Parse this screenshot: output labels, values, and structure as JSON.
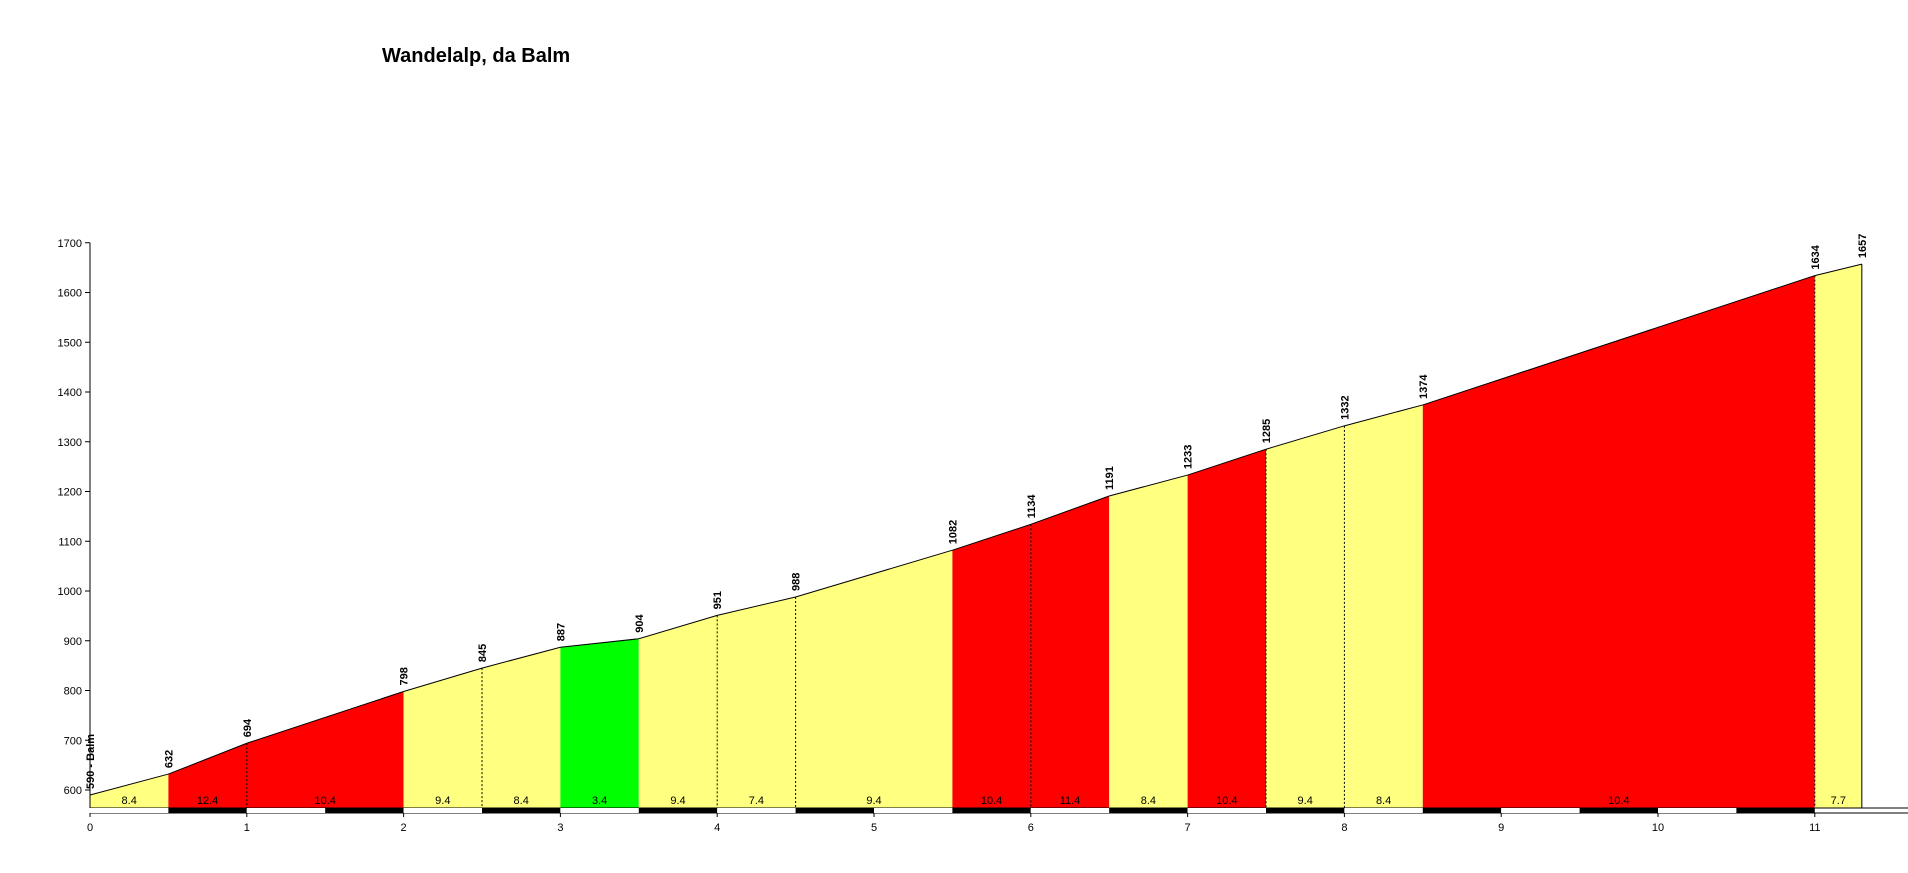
{
  "chart_data": {
    "type": "area",
    "title": "Wandelalp, da Balm",
    "xlabel": "",
    "ylabel": "",
    "xlim": [
      0,
      11.3
    ],
    "ylim": [
      560,
      1700
    ],
    "x_ticks": [
      0,
      1,
      2,
      3,
      4,
      5,
      6,
      7,
      8,
      9,
      10,
      11
    ],
    "y_ticks": [
      600,
      700,
      800,
      900,
      1000,
      1100,
      1200,
      1300,
      1400,
      1500,
      1600,
      1700
    ],
    "profile_points": [
      {
        "x": 0,
        "y": 590,
        "label": "590 - Balm"
      },
      {
        "x": 0.5,
        "y": 632,
        "label": "632"
      },
      {
        "x": 1.0,
        "y": 694,
        "label": "694"
      },
      {
        "x": 2.0,
        "y": 798,
        "label": "798"
      },
      {
        "x": 2.5,
        "y": 845,
        "label": "845"
      },
      {
        "x": 3.0,
        "y": 887,
        "label": "887"
      },
      {
        "x": 3.5,
        "y": 904,
        "label": "904"
      },
      {
        "x": 4.0,
        "y": 951,
        "label": "951"
      },
      {
        "x": 4.5,
        "y": 988,
        "label": "988"
      },
      {
        "x": 5.5,
        "y": 1082,
        "label": "1082"
      },
      {
        "x": 6.0,
        "y": 1134,
        "label": "1134"
      },
      {
        "x": 6.5,
        "y": 1191,
        "label": "1191"
      },
      {
        "x": 7.0,
        "y": 1233,
        "label": "1233"
      },
      {
        "x": 7.5,
        "y": 1285,
        "label": "1285"
      },
      {
        "x": 8.0,
        "y": 1332,
        "label": "1332"
      },
      {
        "x": 8.5,
        "y": 1374,
        "label": "1374"
      },
      {
        "x": 11.0,
        "y": 1634,
        "label": "1634"
      },
      {
        "x": 11.3,
        "y": 1657,
        "label": "1657"
      }
    ],
    "segments": [
      {
        "from": 0,
        "to": 0.5,
        "gradient": "8.4",
        "color": "#ffff80"
      },
      {
        "from": 0.5,
        "to": 2.0,
        "gradient": "12.4",
        "color": "#ff0000",
        "label_at": 0.75
      },
      {
        "from": 0.5,
        "to": 2.0,
        "gradient": "10.4",
        "color": "#ff0000",
        "label_at": 1.5,
        "label_only": true
      },
      {
        "from": 2.0,
        "to": 2.5,
        "gradient": "9.4",
        "color": "#ffff80"
      },
      {
        "from": 2.5,
        "to": 3.0,
        "gradient": "8.4",
        "color": "#ffff80"
      },
      {
        "from": 3.0,
        "to": 3.5,
        "gradient": "3.4",
        "color": "#00ff00"
      },
      {
        "from": 3.5,
        "to": 4.0,
        "gradient": "9.4",
        "color": "#ffff80"
      },
      {
        "from": 4.0,
        "to": 4.5,
        "gradient": "7.4",
        "color": "#ffff80"
      },
      {
        "from": 4.5,
        "to": 5.5,
        "gradient": "9.4",
        "color": "#ffff80"
      },
      {
        "from": 5.5,
        "to": 6.0,
        "gradient": "10.4",
        "color": "#ff0000"
      },
      {
        "from": 6.0,
        "to": 6.5,
        "gradient": "11.4",
        "color": "#ff0000"
      },
      {
        "from": 6.5,
        "to": 7.0,
        "gradient": "8.4",
        "color": "#ffff80"
      },
      {
        "from": 7.0,
        "to": 7.5,
        "gradient": "10.4",
        "color": "#ff0000"
      },
      {
        "from": 7.5,
        "to": 8.0,
        "gradient": "9.4",
        "color": "#ffff80"
      },
      {
        "from": 8.0,
        "to": 8.5,
        "gradient": "8.4",
        "color": "#ffff80"
      },
      {
        "from": 8.5,
        "to": 11.0,
        "gradient": "10.4",
        "color": "#ff0000"
      },
      {
        "from": 11.0,
        "to": 11.3,
        "gradient": "7.7",
        "color": "#ffff80"
      }
    ],
    "dashed_markers": [
      1.0,
      2.5,
      4.0,
      4.5,
      6.0,
      7.5,
      8.0,
      11.0
    ],
    "grid": false,
    "legend": "none"
  }
}
